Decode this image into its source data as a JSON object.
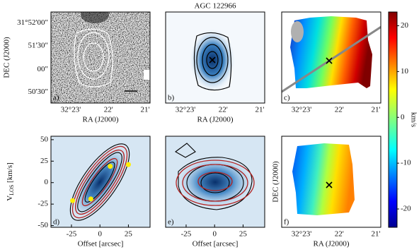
{
  "chart_data": [
    {
      "type": "image",
      "panel_label": "a)",
      "xlabel": "RA (J2000)",
      "ylabel": "DEC (J2000)",
      "xtick_labels": [
        "32°23'",
        "22'",
        "21'"
      ],
      "ytick_labels": [
        "31°52'00\"",
        "51'30\"",
        "00\"",
        "50'30\""
      ]
    },
    {
      "type": "image",
      "title": "AGC 122966",
      "panel_label": "b)",
      "xlabel": "RA (J2000)",
      "xtick_labels": [
        "32°23'",
        "22'",
        "21'"
      ]
    },
    {
      "type": "image",
      "panel_label": "c)",
      "xtick_labels": [
        "32°23'",
        "22'",
        "21'"
      ]
    },
    {
      "type": "colorbar",
      "label": "km/s",
      "ylim": [
        -24,
        23
      ],
      "yticks": [
        -20,
        -10,
        0,
        10,
        20
      ]
    },
    {
      "type": "contour",
      "panel_label": "d)",
      "xlabel": "Offset [arcsec]",
      "ylabel": [
        "V",
        "LOS",
        " [km/s]"
      ],
      "xlim": [
        -43,
        44
      ],
      "xticks": [
        -25,
        0,
        25
      ],
      "ylim": [
        -52,
        54
      ],
      "yticks": [
        -50,
        -25,
        0,
        25,
        50
      ],
      "series": [
        {
          "color": "#ffee00",
          "x": [
            9,
            25,
            -8,
            -24
          ],
          "values": [
            19,
            21,
            -19,
            -21
          ]
        }
      ]
    },
    {
      "type": "contour",
      "panel_label": "e)",
      "xlabel": "Offset [arcsec]",
      "xlim": [
        -43,
        44
      ],
      "xticks": [
        -25,
        0,
        25
      ],
      "ylim": [
        -52,
        54
      ]
    },
    {
      "type": "image",
      "panel_label": "f)",
      "xlabel": "RA (J2000)",
      "ylabel": "DEC (J2000)",
      "xtick_labels": [
        "32°23'",
        "22'",
        "21'"
      ]
    }
  ]
}
